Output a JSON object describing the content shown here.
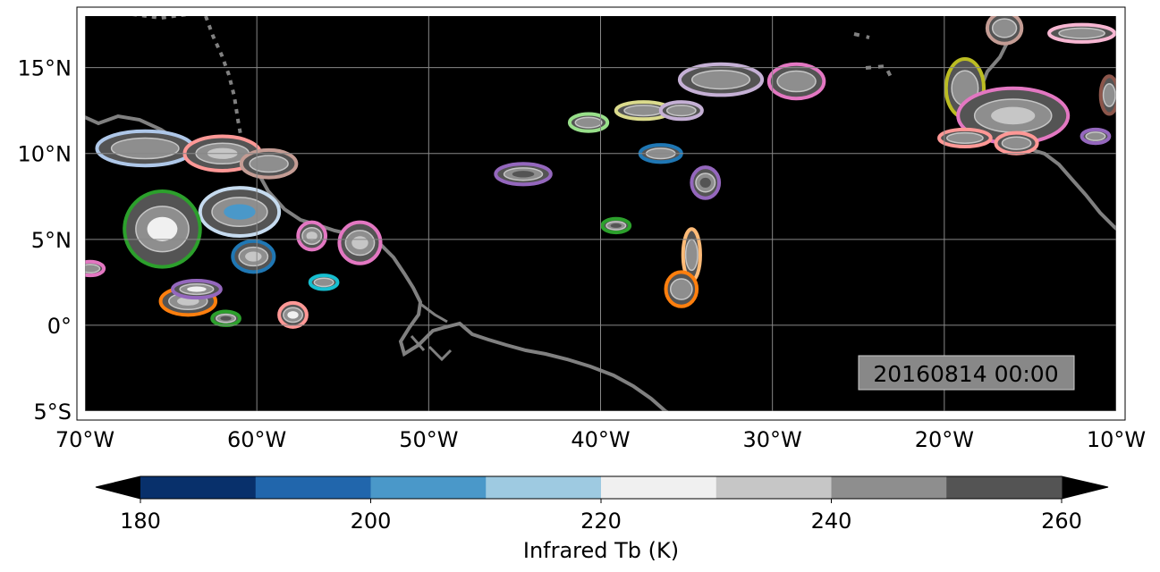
{
  "map": {
    "lon_range": [
      -70,
      -10
    ],
    "lat_range": [
      -5,
      18
    ],
    "gridlines": true,
    "x_ticks": [
      {
        "lon": -70,
        "label": "70°W"
      },
      {
        "lon": -60,
        "label": "60°W"
      },
      {
        "lon": -50,
        "label": "50°W"
      },
      {
        "lon": -40,
        "label": "40°W"
      },
      {
        "lon": -30,
        "label": "30°W"
      },
      {
        "lon": -20,
        "label": "20°W"
      },
      {
        "lon": -10,
        "label": "10°W"
      }
    ],
    "y_ticks": [
      {
        "lat": 15,
        "label": "15°N"
      },
      {
        "lat": 10,
        "label": "10°N"
      },
      {
        "lat": 5,
        "label": "5°N"
      },
      {
        "lat": 0,
        "label": "0°"
      },
      {
        "lat": -5,
        "label": "5°S"
      }
    ],
    "timestamp": "20160814 00:00",
    "colors": {
      "ocean": "#000000",
      "coastline": "#808080",
      "grid": "#888888",
      "timestamp_box": "#888888"
    }
  },
  "colorbar": {
    "label": "Infrared Tb (K)",
    "range": [
      180,
      260
    ],
    "extend": "both",
    "tick_labels": [
      "180",
      "200",
      "220",
      "240",
      "260"
    ],
    "bands": [
      "#08306b",
      "#2166ac",
      "#4a98c9",
      "#9ecae1",
      "#f0f0f0",
      "#c6c6c6",
      "#8e8e8e",
      "#545454"
    ],
    "extend_colors": {
      "low": "#000000",
      "high": "#000000"
    }
  },
  "cloud_systems": [
    {
      "lon": -66.5,
      "lat": 10.3,
      "rx": 2.8,
      "ry": 1.0,
      "outline": "#aec7e8",
      "core": "#8e8e8e"
    },
    {
      "lon": -62.0,
      "lat": 10.0,
      "rx": 2.2,
      "ry": 1.0,
      "outline": "#ff9896",
      "core": "#c6c6c6"
    },
    {
      "lon": -59.3,
      "lat": 9.4,
      "rx": 1.6,
      "ry": 0.8,
      "outline": "#c49c94",
      "core": "#8e8e8e"
    },
    {
      "lon": -61.0,
      "lat": 6.6,
      "rx": 2.3,
      "ry": 1.4,
      "outline": "#c6dbef",
      "core": "#4a98c9"
    },
    {
      "lon": -65.5,
      "lat": 5.6,
      "rx": 2.2,
      "ry": 2.2,
      "outline": "#2ca02c",
      "core": "#f0f0f0"
    },
    {
      "lon": -60.2,
      "lat": 4.0,
      "rx": 1.2,
      "ry": 0.9,
      "outline": "#1f77b4",
      "core": "#c6c6c6"
    },
    {
      "lon": -64.0,
      "lat": 1.4,
      "rx": 1.6,
      "ry": 0.8,
      "outline": "#ff7f0e",
      "core": "#c6c6c6"
    },
    {
      "lon": -63.5,
      "lat": 2.1,
      "rx": 1.4,
      "ry": 0.5,
      "outline": "#9467bd",
      "core": "#f0f0f0"
    },
    {
      "lon": -61.8,
      "lat": 0.4,
      "rx": 0.8,
      "ry": 0.4,
      "outline": "#2ca02c",
      "core": "#545454"
    },
    {
      "lon": -57.9,
      "lat": 0.6,
      "rx": 0.8,
      "ry": 0.7,
      "outline": "#ff9896",
      "core": "#f0f0f0"
    },
    {
      "lon": -56.8,
      "lat": 5.2,
      "rx": 0.8,
      "ry": 0.8,
      "outline": "#e377c2",
      "core": "#c6c6c6"
    },
    {
      "lon": -54.0,
      "lat": 4.8,
      "rx": 1.2,
      "ry": 1.2,
      "outline": "#e377c2",
      "core": "#c6c6c6"
    },
    {
      "lon": -56.1,
      "lat": 2.5,
      "rx": 0.8,
      "ry": 0.4,
      "outline": "#17becf",
      "core": "#8e8e8e"
    },
    {
      "lon": -69.7,
      "lat": 3.3,
      "rx": 0.8,
      "ry": 0.4,
      "outline": "#e377c2",
      "core": "#8e8e8e"
    },
    {
      "lon": -44.5,
      "lat": 8.8,
      "rx": 1.6,
      "ry": 0.6,
      "outline": "#9467bd",
      "core": "#545454"
    },
    {
      "lon": -40.7,
      "lat": 11.8,
      "rx": 1.1,
      "ry": 0.5,
      "outline": "#98df8a",
      "core": "#8e8e8e"
    },
    {
      "lon": -37.5,
      "lat": 12.5,
      "rx": 1.6,
      "ry": 0.5,
      "outline": "#dbdb8d",
      "core": "#8e8e8e"
    },
    {
      "lon": -35.3,
      "lat": 12.5,
      "rx": 1.2,
      "ry": 0.5,
      "outline": "#c5b0d5",
      "core": "#8e8e8e"
    },
    {
      "lon": -33.0,
      "lat": 14.3,
      "rx": 2.4,
      "ry": 0.9,
      "outline": "#c5b0d5",
      "core": "#8e8e8e"
    },
    {
      "lon": -28.6,
      "lat": 14.2,
      "rx": 1.6,
      "ry": 1.0,
      "outline": "#e377c2",
      "core": "#8e8e8e"
    },
    {
      "lon": -36.5,
      "lat": 10.0,
      "rx": 1.2,
      "ry": 0.5,
      "outline": "#1f77b4",
      "core": "#8e8e8e"
    },
    {
      "lon": -33.9,
      "lat": 8.3,
      "rx": 0.8,
      "ry": 0.9,
      "outline": "#9467bd",
      "core": "#545454"
    },
    {
      "lon": -39.1,
      "lat": 5.8,
      "rx": 0.8,
      "ry": 0.4,
      "outline": "#2ca02c",
      "core": "#545454"
    },
    {
      "lon": -34.7,
      "lat": 4.1,
      "rx": 0.5,
      "ry": 1.5,
      "outline": "#ffbb78",
      "core": "#8e8e8e"
    },
    {
      "lon": -35.3,
      "lat": 2.1,
      "rx": 0.9,
      "ry": 1.0,
      "outline": "#ff7f0e",
      "core": "#8e8e8e"
    },
    {
      "lon": -18.8,
      "lat": 13.8,
      "rx": 1.1,
      "ry": 1.7,
      "outline": "#bcbd22",
      "core": "#8e8e8e"
    },
    {
      "lon": -16.0,
      "lat": 12.2,
      "rx": 3.2,
      "ry": 1.6,
      "outline": "#e377c2",
      "core": "#c6c6c6"
    },
    {
      "lon": -18.8,
      "lat": 10.9,
      "rx": 1.5,
      "ry": 0.5,
      "outline": "#ff9896",
      "core": "#8e8e8e"
    },
    {
      "lon": -15.8,
      "lat": 10.6,
      "rx": 1.2,
      "ry": 0.6,
      "outline": "#ff9896",
      "core": "#8e8e8e"
    },
    {
      "lon": -12.0,
      "lat": 17.0,
      "rx": 1.9,
      "ry": 0.5,
      "outline": "#f7b6d2",
      "core": "#8e8e8e"
    },
    {
      "lon": -16.5,
      "lat": 17.3,
      "rx": 1.0,
      "ry": 0.9,
      "outline": "#c49c94",
      "core": "#8e8e8e"
    },
    {
      "lon": -11.2,
      "lat": 11.0,
      "rx": 0.8,
      "ry": 0.4,
      "outline": "#9467bd",
      "core": "#8e8e8e"
    },
    {
      "lon": -10.4,
      "lat": 13.4,
      "rx": 0.5,
      "ry": 1.1,
      "outline": "#8c564b",
      "core": "#8e8e8e"
    }
  ]
}
